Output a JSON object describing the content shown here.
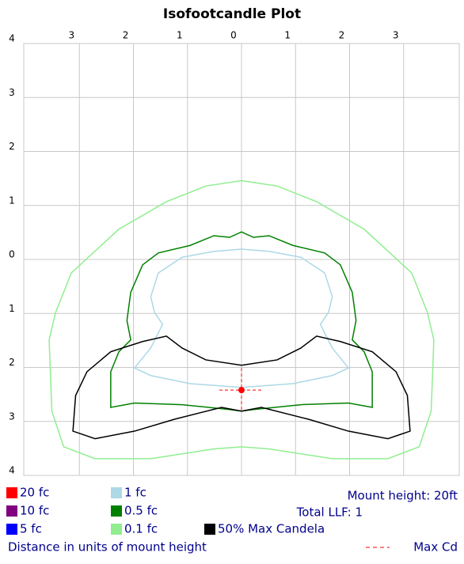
{
  "chart_data": {
    "type": "contour",
    "title": "Isofootcandle Plot",
    "xlabel": "Distance in units of mount height",
    "notes": [
      "Mount height: 20ft",
      "Total LLF: 1"
    ],
    "xlim": [
      -4.03,
      4.03
    ],
    "ylim": [
      -4,
      4
    ],
    "xticks": [
      {
        "value": -3,
        "label": "3"
      },
      {
        "value": -2,
        "label": "2"
      },
      {
        "value": -1,
        "label": "1"
      },
      0,
      1,
      2,
      3
    ],
    "yticks": [
      {
        "value": -4,
        "label": "4"
      },
      {
        "value": -3,
        "label": "3"
      },
      {
        "value": -2,
        "label": "2"
      },
      {
        "value": -1,
        "label": "1"
      },
      0,
      1,
      2,
      3,
      4
    ],
    "grid": true,
    "series": [
      {
        "name": "20 fc",
        "color": "#ff0000",
        "x": [],
        "values": []
      },
      {
        "name": "10 fc",
        "color": "#800080",
        "x": [],
        "values": []
      },
      {
        "name": "5 fc",
        "color": "#0000ff",
        "x": [],
        "values": []
      },
      {
        "name": "1 fc",
        "color": "#add8e6",
        "x": [
          0,
          0.51,
          1.1,
          1.54,
          1.68,
          1.61,
          1.46,
          1.68,
          1.98,
          1.68,
          0.95,
          0,
          -0.95,
          -1.68,
          -1.98,
          -1.68,
          -1.46,
          -1.61,
          -1.68,
          -1.54,
          -1.1,
          -0.51
        ],
        "values": [
          0.19,
          0.15,
          0.04,
          -0.25,
          -0.69,
          -0.98,
          -1.2,
          -1.64,
          -2.01,
          -2.15,
          -2.3,
          -2.37,
          -2.3,
          -2.15,
          -2.01,
          -1.64,
          -1.2,
          -0.98,
          -0.69,
          -0.25,
          0.04,
          0.15
        ]
      },
      {
        "name": "0.5 fc",
        "color": "#008000",
        "x": [
          0,
          0.22,
          0.51,
          0.95,
          1.54,
          1.83,
          2.05,
          2.12,
          2.05,
          2.27,
          2.42,
          2.42,
          1.98,
          1.1,
          0.22,
          0,
          -0.22,
          -1.1,
          -1.98,
          -2.42,
          -2.42,
          -2.27,
          -2.05,
          -2.12,
          -2.05,
          -1.83,
          -1.54,
          -0.95,
          -0.51,
          -0.22
        ],
        "values": [
          0.51,
          0.41,
          0.44,
          0.26,
          0.12,
          -0.1,
          -0.61,
          -1.13,
          -1.49,
          -1.71,
          -2.08,
          -2.74,
          -2.66,
          -2.69,
          -2.78,
          -2.81,
          -2.78,
          -2.69,
          -2.66,
          -2.74,
          -2.08,
          -1.71,
          -1.49,
          -1.13,
          -0.61,
          -0.1,
          0.12,
          0.26,
          0.44,
          0.41
        ]
      },
      {
        "name": "0.1 fc",
        "color": "#90ee90",
        "x": [
          0,
          0.66,
          1.39,
          2.27,
          3.15,
          3.44,
          3.56,
          3.51,
          3.29,
          2.71,
          1.68,
          0.51,
          0,
          -0.51,
          -1.68,
          -2.71,
          -3.29,
          -3.51,
          -3.56,
          -3.44,
          -3.15,
          -2.27,
          -1.39,
          -0.66
        ],
        "values": [
          1.46,
          1.36,
          1.07,
          0.56,
          -0.25,
          -0.98,
          -1.49,
          -2.81,
          -3.47,
          -3.69,
          -3.69,
          -3.51,
          -3.47,
          -3.51,
          -3.69,
          -3.69,
          -3.47,
          -2.81,
          -1.49,
          -0.98,
          -0.25,
          0.56,
          1.07,
          1.36
        ]
      },
      {
        "name": "50% Max Candela",
        "color": "#000000",
        "x": [
          0,
          0.66,
          1.1,
          1.39,
          1.83,
          2.42,
          2.86,
          3.07,
          3.12,
          2.71,
          1.98,
          1.24,
          0.37,
          0,
          -0.37,
          -1.24,
          -1.98,
          -2.71,
          -3.12,
          -3.07,
          -2.86,
          -2.42,
          -1.83,
          -1.39,
          -1.1,
          -0.66
        ],
        "values": [
          -1.96,
          -1.86,
          -1.64,
          -1.42,
          -1.52,
          -1.71,
          -2.08,
          -2.52,
          -3.18,
          -3.32,
          -3.18,
          -2.96,
          -2.74,
          -2.81,
          -2.74,
          -2.96,
          -3.18,
          -3.32,
          -3.18,
          -2.52,
          -2.08,
          -1.71,
          -1.52,
          -1.42,
          -1.64,
          -1.86
        ]
      }
    ],
    "max_cd": {
      "label": "Max Cd",
      "color": "#ff0000",
      "x": 0,
      "y": -2.42
    }
  }
}
